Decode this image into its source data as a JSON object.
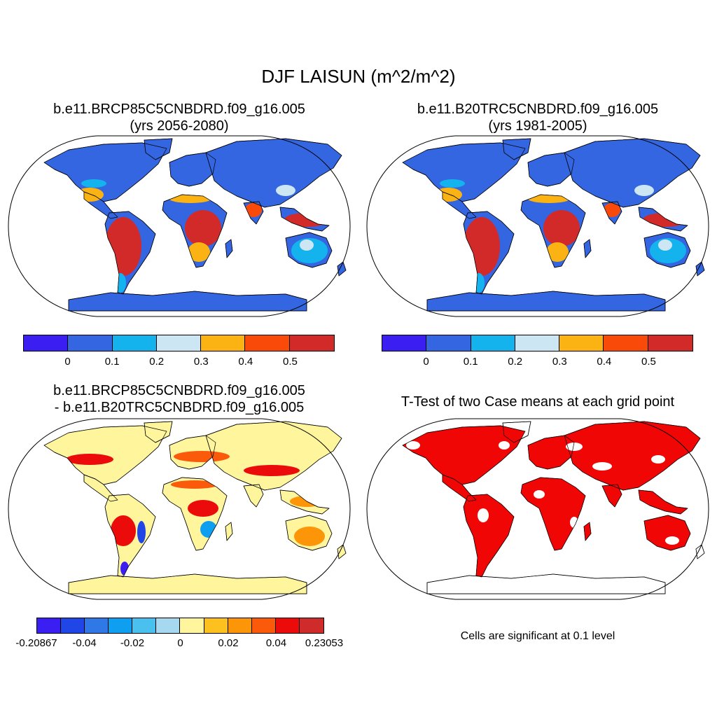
{
  "title": "DJF LAISUN (m^2/m^2)",
  "panels": [
    {
      "line1": "b.e11.BRCP85C5CNBDRD.f09_g16.005",
      "line2": "(yrs 2056-2080)",
      "colorbar": {
        "colors": [
          "#3a1ef2",
          "#3366e0",
          "#14b3ee",
          "#cde6f4",
          "#fbb314",
          "#fa4a09",
          "#d22a28"
        ],
        "labels": [
          "0",
          "0.1",
          "0.2",
          "0.3",
          "0.4",
          "0.5"
        ]
      }
    },
    {
      "line1": "b.e11.B20TRC5CNBDRD.f09_g16.005",
      "line2": "(yrs 1981-2005)",
      "colorbar": {
        "colors": [
          "#3a1ef2",
          "#3366e0",
          "#14b3ee",
          "#cde6f4",
          "#fbb314",
          "#fa4a09",
          "#d22a28"
        ],
        "labels": [
          "0",
          "0.1",
          "0.2",
          "0.3",
          "0.4",
          "0.5"
        ]
      }
    },
    {
      "line1": "b.e11.BRCP85C5CNBDRD.f09_g16.005",
      "line2": "- b.e11.B20TRC5CNBDRD.f09_g16.005",
      "colorbar": {
        "colors": [
          "#3a1ef2",
          "#2146e8",
          "#2f78e6",
          "#0e9ff0",
          "#49c0ee",
          "#a6d8ef",
          "#fff59c",
          "#fcc11f",
          "#fc9508",
          "#fb5a0a",
          "#ec0b0b",
          "#d02b2b"
        ],
        "labels": [
          "-0.20867",
          "-0.04",
          "-0.02",
          "0",
          "0.02",
          "0.04",
          "0.23053"
        ]
      }
    },
    {
      "line1": "T-Test of two Case means at each grid point",
      "note": "Cells are significant at 0.1 level",
      "color": "#f10606"
    }
  ]
}
